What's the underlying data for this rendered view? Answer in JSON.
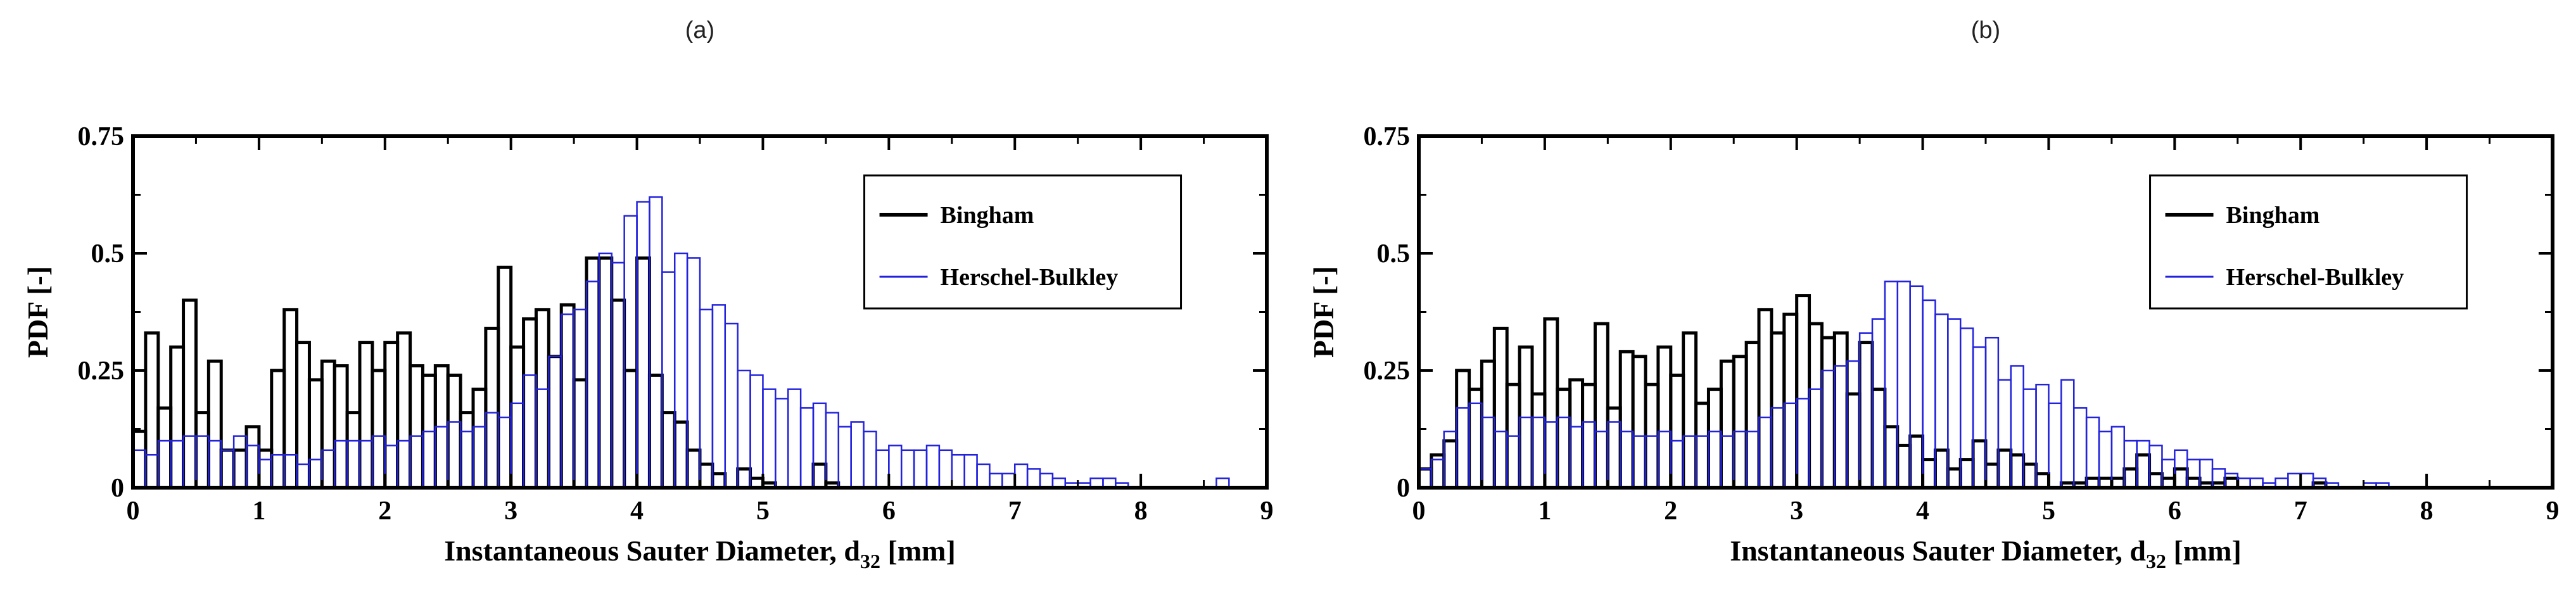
{
  "chart_data": [
    {
      "type": "bar",
      "panel_label": "(a)",
      "xlabel": "Instantaneous Sauter Diameter, d",
      "xlabel_subscript": "32",
      "xlabel_suffix": " [mm]",
      "ylabel": "PDF [-]",
      "xlim": [
        0,
        9
      ],
      "ylim": [
        0,
        0.75
      ],
      "xticks": [
        "0",
        "1",
        "2",
        "3",
        "4",
        "5",
        "6",
        "7",
        "8",
        "9"
      ],
      "yticks": [
        "0",
        "0.25",
        "0.5",
        "0.75"
      ],
      "bin_width": 0.1,
      "legend_position": "top-right",
      "series": [
        {
          "name": "Bingham",
          "color": "#000000",
          "x_start": 0.0,
          "values": [
            0.12,
            0.33,
            0.17,
            0.3,
            0.4,
            0.16,
            0.27,
            0.08,
            0.08,
            0.13,
            0.08,
            0.25,
            0.38,
            0.31,
            0.23,
            0.27,
            0.26,
            0.16,
            0.31,
            0.25,
            0.31,
            0.33,
            0.26,
            0.24,
            0.26,
            0.24,
            0.16,
            0.21,
            0.34,
            0.47,
            0.3,
            0.36,
            0.38,
            0.28,
            0.39,
            0.23,
            0.49,
            0.49,
            0.4,
            0.25,
            0.49,
            0.24,
            0.16,
            0.14,
            0.08,
            0.05,
            0.03,
            0.0,
            0.04,
            0.02,
            0.01,
            0.0,
            0.0,
            0.0,
            0.05,
            0.01
          ]
        },
        {
          "name": "Herschel-Bulkley",
          "color": "#2222dd",
          "x_start": 0.0,
          "values": [
            0.08,
            0.07,
            0.1,
            0.1,
            0.11,
            0.11,
            0.1,
            0.08,
            0.11,
            0.09,
            0.06,
            0.07,
            0.07,
            0.05,
            0.06,
            0.08,
            0.1,
            0.1,
            0.1,
            0.11,
            0.09,
            0.1,
            0.11,
            0.12,
            0.13,
            0.14,
            0.12,
            0.13,
            0.16,
            0.15,
            0.18,
            0.24,
            0.21,
            0.28,
            0.37,
            0.38,
            0.44,
            0.5,
            0.48,
            0.58,
            0.61,
            0.62,
            0.46,
            0.5,
            0.49,
            0.38,
            0.39,
            0.35,
            0.25,
            0.24,
            0.21,
            0.19,
            0.21,
            0.17,
            0.18,
            0.16,
            0.13,
            0.14,
            0.12,
            0.08,
            0.09,
            0.08,
            0.08,
            0.09,
            0.08,
            0.07,
            0.07,
            0.05,
            0.03,
            0.03,
            0.05,
            0.04,
            0.03,
            0.02,
            0.01,
            0.01,
            0.02,
            0.02,
            0.01,
            0.0,
            0.0,
            0.0,
            0.0,
            0.0,
            0.0,
            0.0,
            0.02
          ]
        }
      ]
    },
    {
      "type": "bar",
      "panel_label": "(b)",
      "xlabel": "Instantaneous Sauter Diameter, d",
      "xlabel_subscript": "32",
      "xlabel_suffix": " [mm]",
      "ylabel": "PDF [-]",
      "xlim": [
        0,
        9
      ],
      "ylim": [
        0,
        0.75
      ],
      "xticks": [
        "0",
        "1",
        "2",
        "3",
        "4",
        "5",
        "6",
        "7",
        "8",
        "9"
      ],
      "yticks": [
        "0",
        "0.25",
        "0.5",
        "0.75"
      ],
      "bin_width": 0.1,
      "legend_position": "top-right",
      "series": [
        {
          "name": "Bingham",
          "color": "#000000",
          "x_start": 0.0,
          "values": [
            0.04,
            0.07,
            0.1,
            0.25,
            0.21,
            0.27,
            0.34,
            0.22,
            0.3,
            0.2,
            0.36,
            0.21,
            0.23,
            0.22,
            0.35,
            0.17,
            0.29,
            0.28,
            0.22,
            0.3,
            0.24,
            0.33,
            0.18,
            0.21,
            0.27,
            0.28,
            0.31,
            0.38,
            0.33,
            0.37,
            0.41,
            0.35,
            0.32,
            0.33,
            0.2,
            0.31,
            0.21,
            0.13,
            0.09,
            0.11,
            0.06,
            0.08,
            0.04,
            0.06,
            0.1,
            0.05,
            0.08,
            0.07,
            0.05,
            0.03,
            0.0,
            0.01,
            0.01,
            0.02,
            0.02,
            0.02,
            0.04,
            0.07,
            0.03,
            0.02,
            0.04,
            0.02,
            0.01,
            0.01,
            0.02,
            0.0,
            0.0,
            0.0,
            0.0,
            0.0,
            0.0,
            0.01
          ]
        },
        {
          "name": "Herschel-Bulkley",
          "color": "#2222dd",
          "x_start": 0.0,
          "values": [
            0.04,
            0.06,
            0.12,
            0.17,
            0.18,
            0.15,
            0.12,
            0.11,
            0.15,
            0.15,
            0.14,
            0.15,
            0.13,
            0.14,
            0.12,
            0.14,
            0.12,
            0.11,
            0.11,
            0.12,
            0.1,
            0.11,
            0.11,
            0.12,
            0.11,
            0.12,
            0.12,
            0.15,
            0.17,
            0.18,
            0.19,
            0.21,
            0.25,
            0.26,
            0.27,
            0.33,
            0.36,
            0.44,
            0.44,
            0.43,
            0.4,
            0.37,
            0.36,
            0.34,
            0.3,
            0.32,
            0.23,
            0.26,
            0.21,
            0.22,
            0.18,
            0.23,
            0.17,
            0.15,
            0.12,
            0.13,
            0.1,
            0.1,
            0.09,
            0.06,
            0.08,
            0.06,
            0.06,
            0.04,
            0.03,
            0.02,
            0.02,
            0.01,
            0.02,
            0.03,
            0.03,
            0.02,
            0.01,
            0.0,
            0.0,
            0.01,
            0.01
          ]
        }
      ]
    }
  ]
}
